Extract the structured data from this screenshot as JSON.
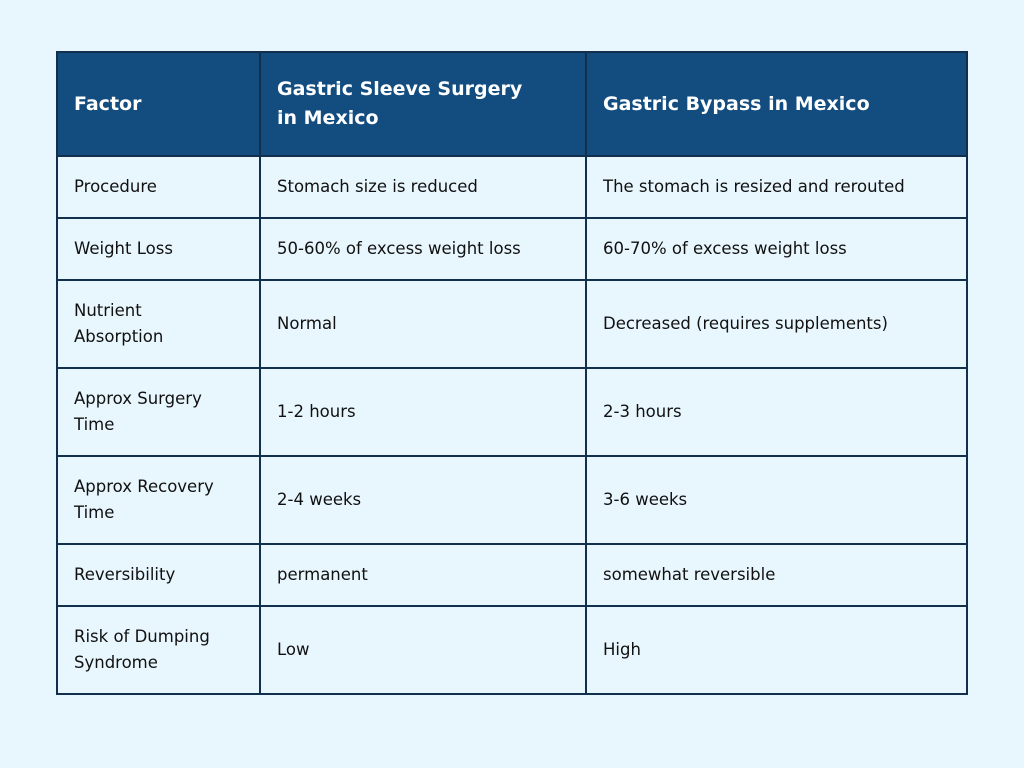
{
  "headers": [
    "Factor",
    "Gastric Sleeve Surgery in Mexico",
    "Gastric Bypass in Mexico"
  ],
  "rows": [
    [
      "Procedure",
      "Stomach size is reduced",
      "The stomach is resized and rerouted"
    ],
    [
      "Weight Loss",
      "50-60% of excess weight loss",
      "60-70% of excess weight loss"
    ],
    [
      "Nutrient Absorption",
      "Normal",
      "Decreased (requires supplements)"
    ],
    [
      "Approx Surgery Time",
      "1-2 hours",
      "2-3 hours"
    ],
    [
      "Approx Recovery Time",
      "2-4 weeks",
      "3-6 weeks"
    ],
    [
      "Reversibility",
      "permanent",
      "somewhat reversible"
    ],
    [
      "Risk of Dumping Syndrome",
      "Low",
      "High"
    ]
  ],
  "colors": {
    "header_bg": "#134d7f",
    "page_bg": "#e8f6fd",
    "border": "#12304d"
  }
}
